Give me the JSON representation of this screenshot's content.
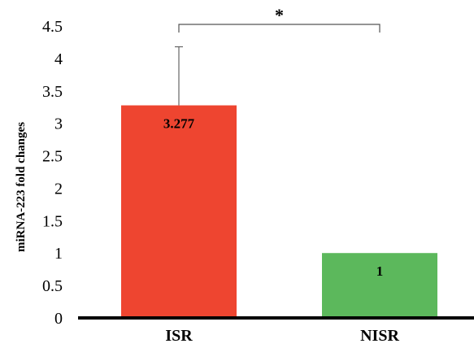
{
  "chart_data": {
    "type": "bar",
    "categories": [
      "ISR",
      "NISR"
    ],
    "values": [
      3.277,
      1
    ],
    "data_labels": [
      "3.277",
      "1"
    ],
    "error_bars": {
      "upper": [
        4.18,
        1.0
      ]
    },
    "ylabel": "miRNA-223 fold changes",
    "ylim": [
      0,
      4.5
    ],
    "yticks": [
      "0",
      "0.5",
      "1",
      "1.5",
      "2",
      "2.5",
      "3",
      "3.5",
      "4",
      "4.5"
    ],
    "colors": [
      "#ee4530",
      "#5cb85c"
    ],
    "grid": false,
    "legend": "none",
    "significance": {
      "between": [
        "ISR",
        "NISR"
      ],
      "label": "*"
    }
  }
}
